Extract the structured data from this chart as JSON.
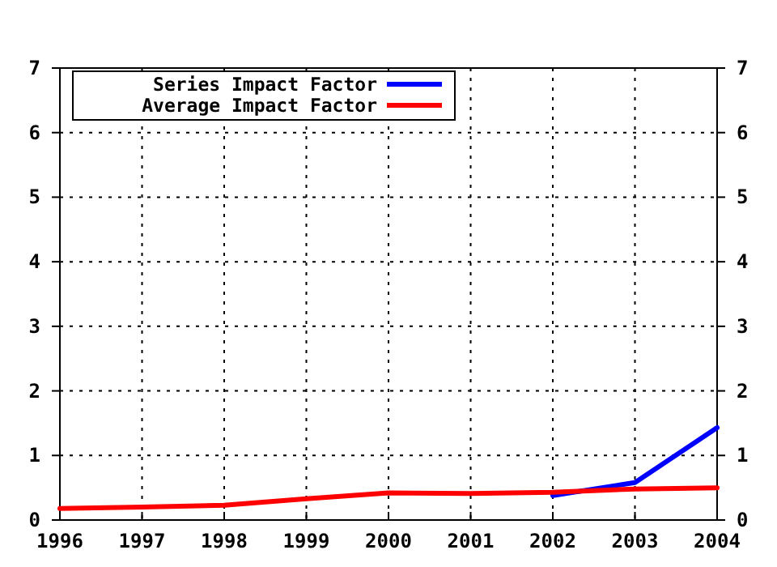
{
  "chart_data": {
    "type": "line",
    "x": [
      1996,
      1997,
      1998,
      1999,
      2000,
      2001,
      2002,
      2003,
      2004
    ],
    "series": [
      {
        "name": "Series Impact Factor",
        "color": "#0000ff",
        "x": [
          2002,
          2003,
          2004
        ],
        "values": [
          0.38,
          0.58,
          1.43
        ]
      },
      {
        "name": "Average Impact Factor",
        "color": "#ff0000",
        "values": [
          0.18,
          0.2,
          0.23,
          0.33,
          0.42,
          0.41,
          0.43,
          0.48,
          0.5
        ]
      }
    ],
    "xlim": [
      1996,
      2004
    ],
    "xticks": [
      1996,
      1997,
      1998,
      1999,
      2000,
      2001,
      2002,
      2003,
      2004
    ],
    "ylim": [
      0,
      7
    ],
    "yticks": [
      0,
      1,
      2,
      3,
      4,
      5,
      6,
      7
    ],
    "y2lim": [
      0,
      7
    ],
    "y2ticks": [
      0,
      1,
      2,
      3,
      4,
      5,
      6,
      7
    ],
    "grid": true,
    "legend": "top left",
    "line_style": "solid",
    "marker": "none"
  }
}
